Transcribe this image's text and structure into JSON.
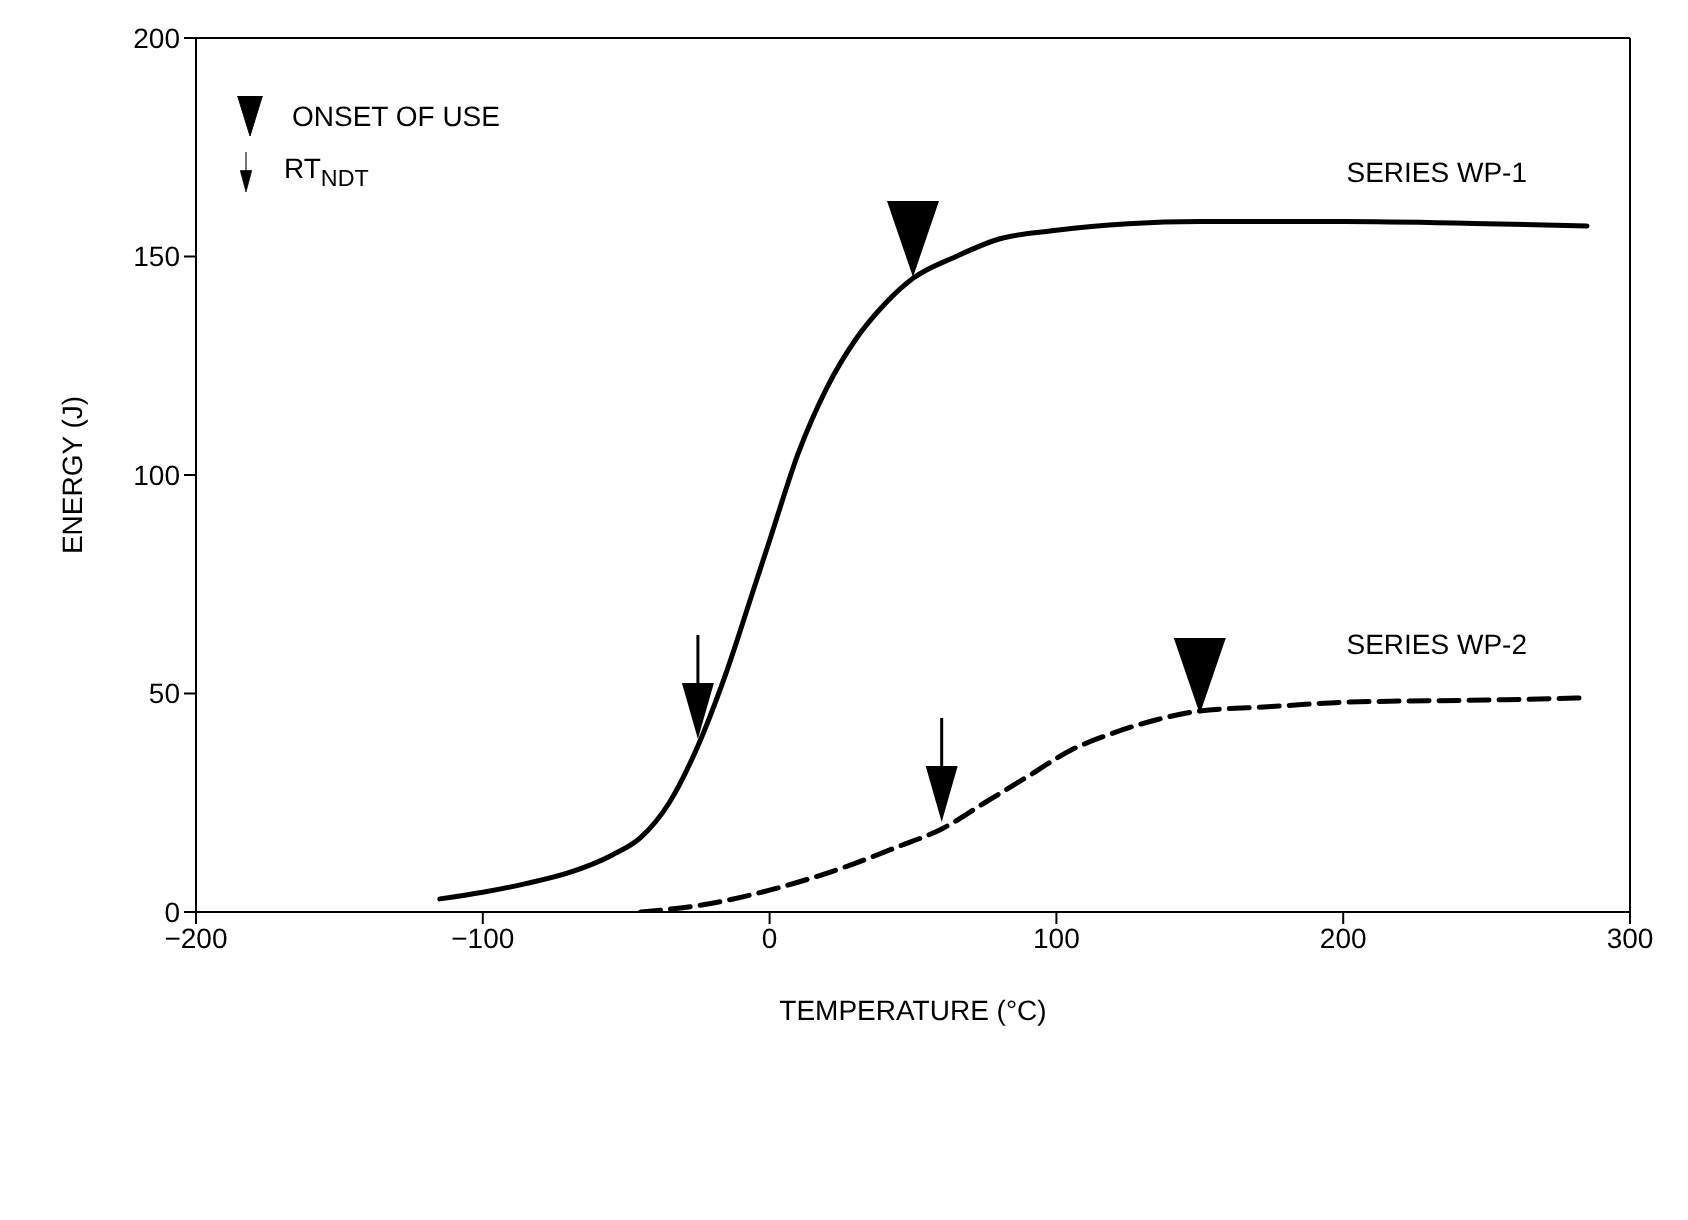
{
  "chart_data": {
    "type": "line",
    "xlabel": "TEMPERATURE (°C)",
    "ylabel": "ENERGY (J)",
    "xlim": [
      -200,
      300
    ],
    "xticks": [
      -200,
      -100,
      0,
      100,
      200,
      300
    ],
    "ylim": [
      0,
      200
    ],
    "yticks": [
      0,
      50,
      100,
      150,
      200
    ],
    "legend": "top left",
    "series": [
      {
        "name": "SERIES WP-1",
        "color": "#000000",
        "line_style": "solid",
        "marker": "none",
        "x": [
          -115,
          -100,
          -85,
          -70,
          -55,
          -45,
          -35,
          -25,
          -15,
          -5,
          0,
          10,
          20,
          30,
          40,
          50,
          65,
          80,
          100,
          125,
          150,
          200,
          250,
          285
        ],
        "values": [
          3,
          4.5,
          6.5,
          9,
          13,
          17,
          25,
          38,
          55,
          75,
          85,
          105,
          120,
          131,
          139,
          145,
          150,
          154,
          156,
          157.5,
          158,
          158,
          157.5,
          157
        ]
      },
      {
        "name": "SERIES WP-2",
        "color": "#000000",
        "line_style": "dashed",
        "marker": "none",
        "x": [
          -45,
          -20,
          0,
          25,
          45,
          60,
          75,
          90,
          105,
          120,
          135,
          150,
          175,
          200,
          250,
          285
        ],
        "values": [
          0,
          2,
          5,
          10,
          15,
          19,
          25,
          31,
          37,
          41,
          44,
          46,
          47,
          48,
          48.5,
          49
        ]
      },
      {
        "name": "ONSET OF USE",
        "type": "scatter",
        "color": "#000000",
        "marker": "triangle",
        "x": [
          50,
          150
        ],
        "values": [
          154,
          54
        ]
      },
      {
        "name": "RT$_{NDT}$",
        "type": "scatter",
        "color": "#000000",
        "marker": "triangle",
        "x": [
          -25,
          60
        ],
        "values": [
          46,
          27
        ]
      }
    ]
  }
}
